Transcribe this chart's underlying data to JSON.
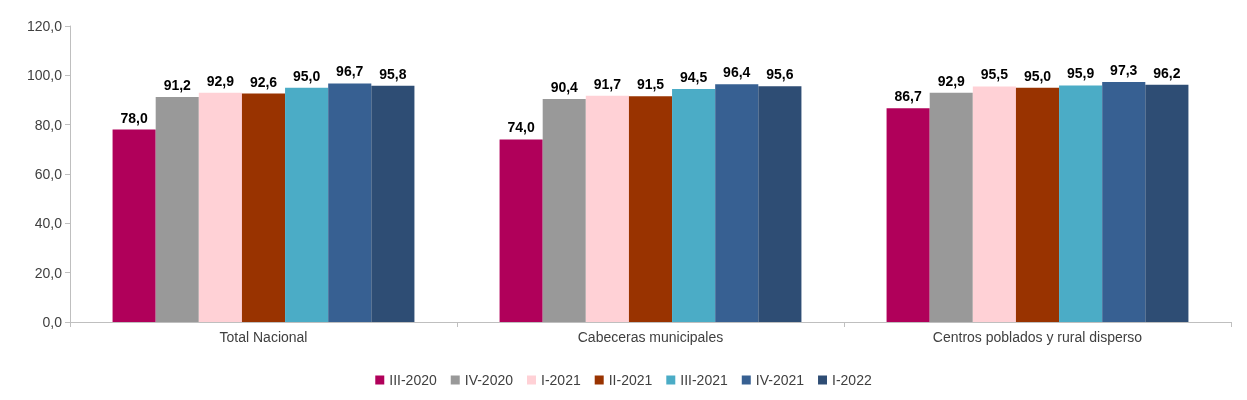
{
  "chart_data": {
    "type": "bar",
    "categories": [
      "Total Nacional",
      "Cabeceras municipales",
      "Centros poblados y rural disperso"
    ],
    "series": [
      {
        "name": "III-2020",
        "color": "#b0005a",
        "values": [
          78.0,
          74.0,
          86.7
        ],
        "value_labels": [
          "78,0",
          "74,0",
          "86,7"
        ]
      },
      {
        "name": "IV-2020",
        "color": "#999999",
        "values": [
          91.2,
          90.4,
          92.9
        ],
        "value_labels": [
          "91,2",
          "90,4",
          "92,9"
        ]
      },
      {
        "name": "I-2021",
        "color": "#ffd1d6",
        "values": [
          92.9,
          91.7,
          95.5
        ],
        "value_labels": [
          "92,9",
          "91,7",
          "95,5"
        ]
      },
      {
        "name": "II-2021",
        "color": "#993300",
        "values": [
          92.6,
          91.5,
          95.0
        ],
        "value_labels": [
          "92,6",
          "91,5",
          "95,0"
        ]
      },
      {
        "name": "III-2021",
        "color": "#4bacc6",
        "values": [
          95.0,
          94.5,
          95.9
        ],
        "value_labels": [
          "95,0",
          "94,5",
          "95,9"
        ]
      },
      {
        "name": "IV-2021",
        "color": "#376092",
        "values": [
          96.7,
          96.4,
          97.3
        ],
        "value_labels": [
          "96,7",
          "96,4",
          "97,3"
        ]
      },
      {
        "name": "I-2022",
        "color": "#2e4d74",
        "values": [
          95.8,
          95.6,
          96.2
        ],
        "value_labels": [
          "95,8",
          "95,6",
          "96,2"
        ]
      }
    ],
    "ylim": [
      0,
      120
    ],
    "yticks": [
      {
        "value": 0,
        "label": "0,0"
      },
      {
        "value": 20,
        "label": "20,0"
      },
      {
        "value": 40,
        "label": "40,0"
      },
      {
        "value": 60,
        "label": "60,0"
      },
      {
        "value": 80,
        "label": "80,0"
      },
      {
        "value": 100,
        "label": "100,0"
      },
      {
        "value": 120,
        "label": "120,0"
      }
    ],
    "grid": false,
    "legend": "bottom"
  }
}
